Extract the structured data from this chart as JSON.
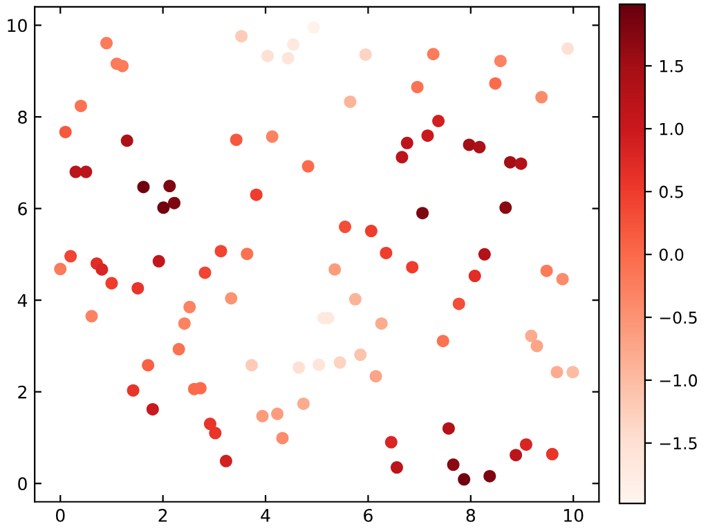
{
  "chart_data": {
    "type": "scatter",
    "marker": "circle",
    "grid": false,
    "x": [
      0.9,
      1.1,
      1.21,
      0.4,
      0.1,
      1.3,
      0.3,
      0.5,
      1.62,
      2.13,
      2.01,
      2.22,
      0.2,
      3.43,
      4.13,
      4.83,
      3.82,
      3.13,
      3.64,
      3.53,
      4.04,
      4.44,
      4.54,
      4.94,
      5.95,
      7.27,
      8.58,
      9.89,
      6.96,
      8.48,
      9.38,
      5.65,
      7.37,
      6.76,
      7.16,
      6.66,
      7.97,
      8.17,
      8.77,
      8.98,
      7.06,
      8.68,
      5.55,
      6.06,
      6.35,
      8.27,
      0.0,
      0.71,
      0.81,
      1.0,
      1.92,
      1.51,
      0.61,
      2.82,
      3.33,
      2.52,
      2.42,
      2.31,
      1.71,
      1.42,
      2.61,
      2.73,
      1.8,
      2.92,
      3.02,
      3.23,
      3.73,
      3.94,
      4.23,
      4.33,
      4.74,
      4.65,
      5.04,
      5.35,
      6.86,
      8.08,
      9.48,
      9.79,
      5.75,
      7.77,
      5.13,
      5.22,
      6.26,
      9.18,
      9.29,
      7.46,
      5.45,
      5.85,
      6.15,
      9.68,
      9.99,
      7.57,
      6.45,
      9.08,
      8.88,
      9.59,
      6.56,
      7.66,
      7.87,
      8.37
    ],
    "values": [
      9.61,
      9.16,
      9.11,
      8.24,
      7.67,
      7.48,
      6.8,
      6.8,
      6.47,
      6.49,
      6.02,
      6.12,
      4.96,
      7.5,
      7.57,
      6.92,
      6.3,
      5.07,
      5.01,
      9.76,
      9.33,
      9.28,
      9.58,
      9.95,
      9.36,
      9.37,
      9.22,
      9.49,
      8.65,
      8.73,
      8.43,
      8.33,
      7.91,
      7.43,
      7.59,
      7.12,
      7.39,
      7.34,
      7.01,
      6.98,
      5.9,
      6.02,
      5.6,
      5.51,
      5.03,
      5.0,
      4.68,
      4.8,
      4.67,
      4.37,
      4.85,
      4.26,
      3.65,
      4.6,
      4.04,
      3.85,
      3.49,
      2.93,
      2.58,
      2.03,
      2.06,
      2.08,
      1.62,
      1.3,
      1.1,
      0.49,
      2.58,
      1.47,
      1.52,
      0.99,
      1.74,
      2.53,
      2.59,
      4.67,
      4.72,
      4.53,
      4.64,
      4.46,
      4.02,
      3.92,
      3.61,
      3.61,
      3.49,
      3.22,
      3.0,
      3.11,
      2.64,
      2.81,
      2.34,
      2.43,
      2.43,
      1.2,
      0.9,
      0.85,
      0.62,
      0.64,
      0.35,
      0.41,
      0.09,
      0.16
    ],
    "cvalues": [
      -0.2,
      -0.2,
      -0.2,
      -0.1,
      0.2,
      1.4,
      1.2,
      1.2,
      1.9,
      1.8,
      1.9,
      1.8,
      0.4,
      0.2,
      -0.3,
      0.0,
      0.5,
      0.4,
      -0.1,
      -1.2,
      -1.5,
      -1.6,
      -1.7,
      -1.9,
      -1.3,
      -0.2,
      -0.3,
      -1.5,
      -0.1,
      0.0,
      -0.4,
      -0.9,
      0.9,
      1.2,
      1.0,
      1.2,
      1.5,
      1.4,
      1.5,
      1.3,
      1.8,
      1.7,
      0.3,
      0.5,
      0.5,
      1.3,
      -0.2,
      0.7,
      0.8,
      0.5,
      1.1,
      0.6,
      -0.3,
      0.4,
      -0.5,
      -0.3,
      -0.3,
      -0.1,
      0.1,
      0.6,
      0.0,
      0.0,
      1.0,
      0.6,
      0.6,
      0.9,
      -1.2,
      -0.6,
      -0.6,
      -0.4,
      -0.8,
      -1.5,
      -1.6,
      -0.6,
      0.5,
      0.7,
      -0.2,
      -0.4,
      -0.9,
      0.3,
      -1.7,
      -1.7,
      -0.8,
      -0.8,
      -0.7,
      -0.1,
      -1.3,
      -1.1,
      -0.7,
      -0.8,
      -1.0,
      1.3,
      0.8,
      0.8,
      1.2,
      0.6,
      1.2,
      1.7,
      1.9,
      1.8
    ],
    "xlim": [
      -0.5,
      10.5
    ],
    "ylim": [
      -0.4,
      10.4
    ],
    "xticks": [
      0,
      2,
      4,
      6,
      8,
      10
    ],
    "yticks": [
      0,
      2,
      4,
      6,
      8,
      10
    ],
    "clim": [
      -1.98,
      1.99
    ],
    "cticks": [
      {
        "value": 1.5,
        "label": "1.5"
      },
      {
        "value": 1.0,
        "label": "1.0"
      },
      {
        "value": 0.5,
        "label": "0.5"
      },
      {
        "value": 0.0,
        "label": "0.0"
      },
      {
        "value": -0.5,
        "label": "−0.5"
      },
      {
        "value": -1.0,
        "label": "−1.0"
      },
      {
        "value": -1.5,
        "label": "−1.5"
      }
    ]
  }
}
